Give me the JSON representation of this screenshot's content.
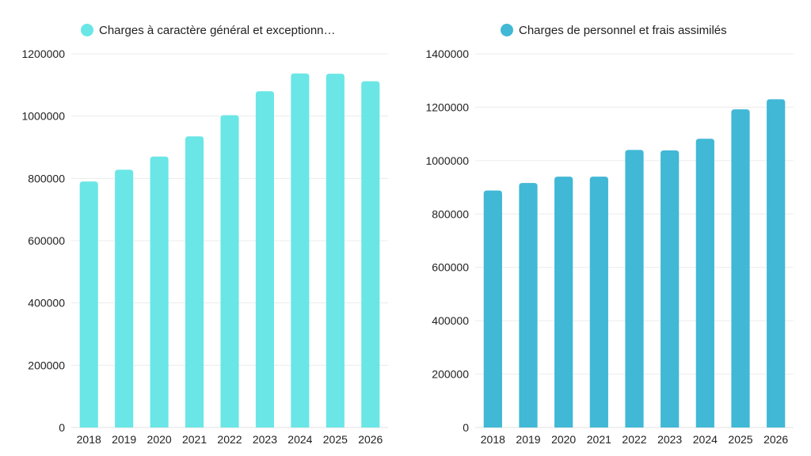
{
  "chart_data": [
    {
      "type": "bar",
      "categories": [
        "2018",
        "2019",
        "2020",
        "2021",
        "2022",
        "2023",
        "2024",
        "2025",
        "2026"
      ],
      "series": [
        {
          "name": "Charges à caractère général et exceptionn…",
          "values": [
            790000,
            828000,
            870000,
            935000,
            1003000,
            1080000,
            1137000,
            1136000,
            1112000
          ],
          "color": "#6ae6e6"
        }
      ],
      "yticks": [
        "0",
        "200000",
        "400000",
        "600000",
        "800000",
        "1000000",
        "1200000"
      ],
      "ylim": [
        0,
        1200000
      ],
      "grid": true,
      "legend": "top"
    },
    {
      "type": "bar",
      "categories": [
        "2018",
        "2019",
        "2020",
        "2021",
        "2022",
        "2023",
        "2024",
        "2025",
        "2026"
      ],
      "series": [
        {
          "name": "Charges de personnel et frais assimilés",
          "values": [
            888000,
            916000,
            940000,
            940000,
            1040000,
            1038000,
            1082000,
            1192000,
            1230000
          ],
          "color": "#41b8d5"
        }
      ],
      "yticks": [
        "0",
        "200000",
        "400000",
        "600000",
        "800000",
        "1000000",
        "1200000",
        "1400000"
      ],
      "ylim": [
        0,
        1400000
      ],
      "grid": true,
      "legend": "top"
    }
  ]
}
